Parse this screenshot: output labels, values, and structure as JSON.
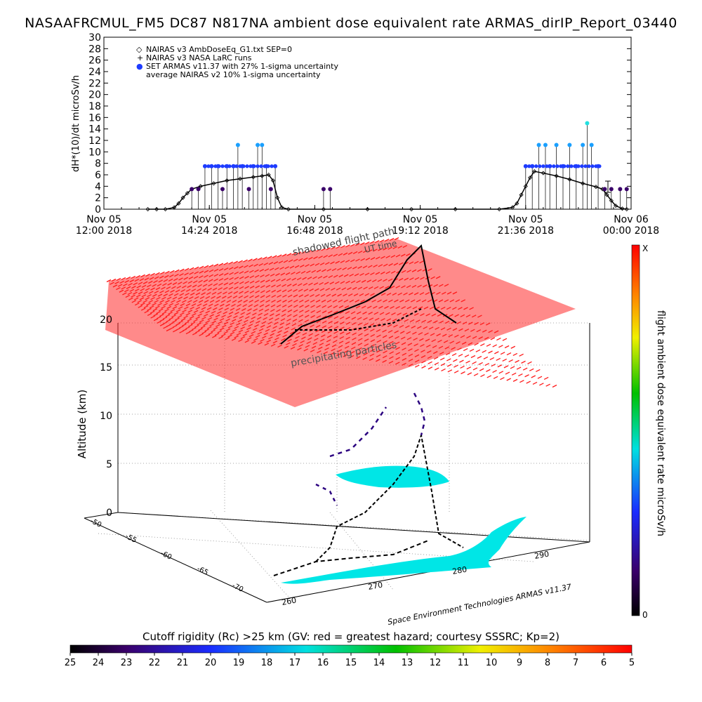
{
  "title": "NASAAFRCMUL_FM5 DC87 N817NA ambient dose equivalent rate ARMAS_dirIP_Report_03440",
  "chart_data": [
    {
      "type": "line",
      "ylabel": "dH*(10)/dt microSv/h",
      "ylim": [
        0,
        30
      ],
      "yticks": [
        "0",
        "2",
        "4",
        "6",
        "8",
        "10",
        "12",
        "14",
        "16",
        "18",
        "20",
        "22",
        "24",
        "26",
        "28",
        "30"
      ],
      "xlim_hours": [
        12.0,
        24.0
      ],
      "xticks": [
        {
          "line1": "Nov 05",
          "line2": "12:00 2018"
        },
        {
          "line1": "Nov 05",
          "line2": "14:24 2018"
        },
        {
          "line1": "Nov 05",
          "line2": "16:48 2018"
        },
        {
          "line1": "Nov 05",
          "line2": "19:12 2018"
        },
        {
          "line1": "Nov 05",
          "line2": "21:36 2018"
        },
        {
          "line1": "Nov 06",
          "line2": "00:00 2018"
        }
      ],
      "legend": [
        {
          "symbol": "◇",
          "label": "NAIRAS v3 AmbDoseEq_G1.txt SEP=0"
        },
        {
          "symbol": "+",
          "label": "NAIRAS v3 NASA LaRC runs"
        },
        {
          "symbol": "●",
          "label": "SET ARMAS v11.37 with 27% 1-sigma uncertainty"
        },
        {
          "symbol": "",
          "label": "average NAIRAS v2 10% 1-sigma uncertainty"
        }
      ],
      "series": [
        {
          "name": "NAIRAS v3 AmbDoseEq_G1.txt SEP=0",
          "points": [
            [
              13.0,
              0
            ],
            [
              13.2,
              0
            ],
            [
              13.4,
              0
            ],
            [
              13.6,
              0.3
            ],
            [
              13.7,
              1
            ],
            [
              13.8,
              2
            ],
            [
              13.9,
              2.8
            ],
            [
              14.0,
              3.5
            ],
            [
              14.2,
              4
            ],
            [
              14.5,
              4.5
            ],
            [
              14.8,
              5
            ],
            [
              15.1,
              5.3
            ],
            [
              15.4,
              5.6
            ],
            [
              15.6,
              5.8
            ],
            [
              15.75,
              6
            ],
            [
              15.85,
              5
            ],
            [
              15.95,
              2
            ],
            [
              16.05,
              0.3
            ],
            [
              16.2,
              0
            ],
            [
              17,
              0
            ],
            [
              18,
              0
            ],
            [
              19,
              0
            ],
            [
              20,
              0
            ],
            [
              21,
              0
            ],
            [
              21.3,
              0.3
            ],
            [
              21.4,
              1
            ],
            [
              21.5,
              2.5
            ],
            [
              21.6,
              4
            ],
            [
              21.7,
              5.5
            ],
            [
              21.8,
              6.6
            ],
            [
              22.0,
              6.3
            ],
            [
              22.3,
              5.8
            ],
            [
              22.6,
              5.2
            ],
            [
              22.9,
              4.5
            ],
            [
              23.2,
              3.9
            ],
            [
              23.35,
              3.5
            ],
            [
              23.45,
              2.5
            ],
            [
              23.55,
              1.5
            ],
            [
              23.65,
              0.6
            ],
            [
              23.8,
              0.1
            ],
            [
              23.9,
              0
            ]
          ]
        },
        {
          "name": "SET ARMAS v11.37",
          "color": "#1e3cff",
          "points": [
            [
              14.0,
              3.5
            ],
            [
              14.15,
              3.5
            ],
            [
              14.3,
              7.5
            ],
            [
              14.45,
              7.5
            ],
            [
              14.6,
              7.5
            ],
            [
              14.7,
              3.5
            ],
            [
              14.8,
              7.5
            ],
            [
              14.95,
              7.5
            ],
            [
              15.05,
              11.2
            ],
            [
              15.15,
              7.5
            ],
            [
              15.3,
              3.5
            ],
            [
              15.4,
              7.5
            ],
            [
              15.5,
              11.2
            ],
            [
              15.6,
              11.2
            ],
            [
              15.7,
              7.5
            ],
            [
              15.8,
              3.5
            ],
            [
              15.9,
              7.5
            ],
            [
              17.0,
              3.5
            ],
            [
              17.15,
              3.5
            ],
            [
              21.6,
              7.5
            ],
            [
              21.75,
              7.5
            ],
            [
              21.9,
              11.2
            ],
            [
              22.05,
              11.2
            ],
            [
              22.15,
              7.5
            ],
            [
              22.3,
              11.2
            ],
            [
              22.45,
              7.5
            ],
            [
              22.6,
              11.2
            ],
            [
              22.75,
              7.5
            ],
            [
              22.9,
              11.2
            ],
            [
              23.0,
              15
            ],
            [
              23.1,
              11.2
            ],
            [
              23.25,
              7.5
            ],
            [
              23.4,
              3.5
            ],
            [
              23.55,
              3.5
            ],
            [
              23.75,
              3.5
            ],
            [
              23.9,
              3.5
            ]
          ]
        }
      ]
    },
    {
      "type": "scatter",
      "zlabel": "Altitude (km)",
      "zticks": [
        "0",
        "5",
        "10",
        "15",
        "20"
      ],
      "yticks": [
        "-50",
        "-55",
        "-60",
        "-65",
        "-70"
      ],
      "xticks": [
        "260",
        "270",
        "280",
        "290"
      ],
      "labels": [
        "shadowed flight path",
        "UT time",
        "precipitating particles"
      ],
      "credit": "Space Environment Technologies ARMAS v11.37"
    },
    {
      "type": "heatmap",
      "colorbar_label": "flight ambient dose equivalent rate microSv/h",
      "colorbar_ticks": [
        "X",
        "0"
      ]
    },
    {
      "type": "heatmap",
      "colorbar_label": "Cutoff rigidity (Rc) >25 km (GV: red = greatest hazard; courtesy SSSRC; Kp=2)",
      "colorbar_ticks": [
        "25",
        "24",
        "23",
        "22",
        "21",
        "20",
        "19",
        "18",
        "17",
        "16",
        "15",
        "14",
        "13",
        "12",
        "11",
        "10",
        "9",
        "8",
        "7",
        "6",
        "5"
      ]
    }
  ]
}
